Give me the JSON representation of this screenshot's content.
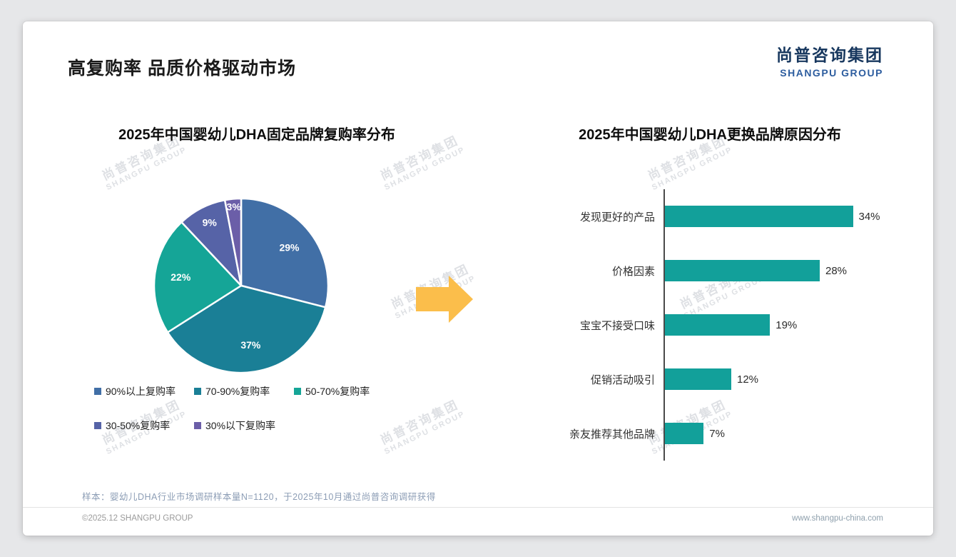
{
  "page": {
    "title": "高复购率 品质价格驱动市场",
    "logo": {
      "cn": "尚普咨询集团",
      "en": "SHANGPU GROUP"
    },
    "watermark": {
      "cn": "尚普咨询集团",
      "en": "SHANGPU GROUP"
    },
    "arrow_color": "#FBBE4B",
    "footer": {
      "note": "样本：婴幼儿DHA行业市场调研样本量N=1120，于2025年10月通过尚普咨询调研获得",
      "copyright": "©2025.12 SHANGPU GROUP",
      "website": "www.shangpu-china.com"
    }
  },
  "chart_data": [
    {
      "type": "pie",
      "title": "2025年中国婴幼儿DHA固定品牌复购率分布",
      "labels": [
        "90%以上复购率",
        "70-90%复购率",
        "50-70%复购率",
        "30-50%复购率",
        "30%以下复购率"
      ],
      "values": [
        29,
        37,
        22,
        9,
        3
      ],
      "data_labels": [
        "29%",
        "37%",
        "22%",
        "9%",
        "3%"
      ],
      "colors": [
        "#416FA6",
        "#1A7F96",
        "#15A597",
        "#5663A7",
        "#6B5EA8"
      ],
      "legend_position": "bottom",
      "start_angle_deg": 0,
      "direction": "clockwise"
    },
    {
      "type": "bar",
      "orientation": "horizontal",
      "title": "2025年中国婴幼儿DHA更换品牌原因分布",
      "categories": [
        "发现更好的产品",
        "价格因素",
        "宝宝不接受口味",
        "促销活动吸引",
        "亲友推荐其他品牌"
      ],
      "values": [
        34,
        28,
        19,
        12,
        7
      ],
      "value_labels": [
        "34%",
        "28%",
        "19%",
        "12%",
        "7%"
      ],
      "bar_color": "#12A09A",
      "xlim": [
        0,
        40
      ],
      "grid": false,
      "legend": false
    }
  ]
}
